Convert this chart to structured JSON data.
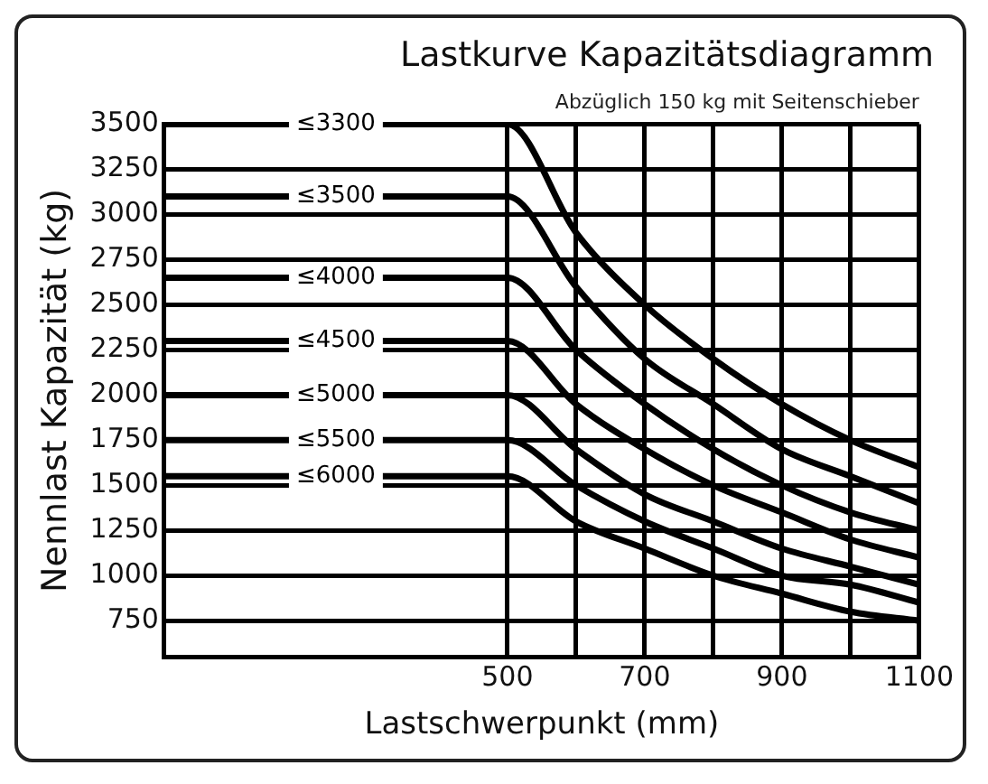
{
  "chart_data": {
    "type": "line",
    "title": "Lastkurve Kapazitätsdiagramm",
    "xlabel": "Lastschwerpunkt (mm)",
    "ylabel": "Nennlast Kapazität (kg)",
    "annotations": [
      "Abzüglich 150 kg mit Seitenschieber"
    ],
    "x": [
      0,
      500,
      600,
      700,
      800,
      900,
      1000,
      1100
    ],
    "xlim": [
      0,
      1100
    ],
    "xticks": [
      500,
      {
        "value": 600,
        "label": null
      },
      700,
      {
        "value": 800,
        "label": null
      },
      900,
      {
        "value": 1000,
        "label": null
      },
      1100
    ],
    "ylim": [
      550,
      3500
    ],
    "yticks": [
      750,
      1000,
      1250,
      1500,
      1750,
      2000,
      2250,
      2500,
      2750,
      3000,
      3250,
      3500
    ],
    "grid": true,
    "legend": false,
    "marker": "none",
    "line_style": "solid",
    "series": [
      {
        "name": "≤3300",
        "color": "#000000",
        "values": [
          3500,
          3500,
          2900,
          2500,
          2200,
          1950,
          1750,
          1600
        ]
      },
      {
        "name": "≤3500",
        "color": "#000000",
        "values": [
          3100,
          3100,
          2600,
          2200,
          1950,
          1700,
          1550,
          1400
        ]
      },
      {
        "name": "≤4000",
        "color": "#000000",
        "values": [
          2650,
          2650,
          2250,
          1950,
          1700,
          1500,
          1350,
          1250
        ]
      },
      {
        "name": "≤4500",
        "color": "#000000",
        "values": [
          2300,
          2300,
          1950,
          1700,
          1500,
          1350,
          1200,
          1100
        ]
      },
      {
        "name": "≤5000",
        "color": "#000000",
        "values": [
          2000,
          2000,
          1700,
          1450,
          1300,
          1150,
          1050,
          950
        ]
      },
      {
        "name": "≤5500",
        "color": "#000000",
        "values": [
          1750,
          1750,
          1500,
          1300,
          1150,
          1000,
          950,
          850
        ]
      },
      {
        "name": "≤6000",
        "color": "#000000",
        "values": [
          1550,
          1550,
          1300,
          1150,
          1000,
          900,
          800,
          750
        ]
      }
    ]
  }
}
